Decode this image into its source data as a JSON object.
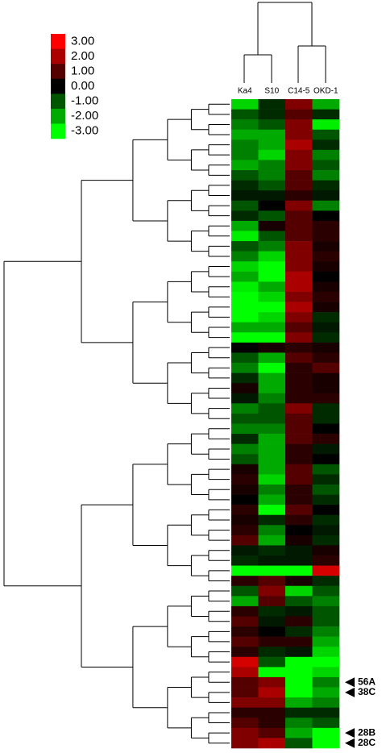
{
  "chart_data": {
    "type": "heatmap",
    "columns": [
      "Ka4",
      "S10",
      "C14-5",
      "OKD-1"
    ],
    "rows": [
      null,
      null,
      null,
      null,
      null,
      null,
      null,
      null,
      null,
      null,
      null,
      null,
      null,
      null,
      null,
      null,
      null,
      null,
      null,
      null,
      null,
      null,
      null,
      null,
      null,
      null,
      null,
      null,
      null,
      null,
      null,
      null,
      null,
      null,
      null,
      null,
      null,
      null,
      null,
      null,
      null,
      null,
      null,
      null,
      null,
      null,
      null,
      null,
      null,
      null,
      null,
      null,
      null,
      null,
      null,
      null,
      null,
      "56A",
      "38C",
      null,
      null,
      null,
      "28B",
      "28C"
    ],
    "values": [
      [
        -2.5,
        -0.5,
        1.5,
        -2
      ],
      [
        -1,
        -0.5,
        1,
        -0.5
      ],
      [
        -1.5,
        -1,
        1.5,
        -2.8
      ],
      [
        -2,
        -2,
        1.5,
        -1
      ],
      [
        -1.5,
        -2,
        2,
        -0.5
      ],
      [
        -1.5,
        -2.5,
        1.5,
        -1.5
      ],
      [
        -2,
        -1.5,
        1.5,
        -1
      ],
      [
        -1,
        -1.5,
        1,
        -1.5
      ],
      [
        -0.5,
        -1,
        1,
        -0.5
      ],
      [
        -0.3,
        -0.3,
        0.5,
        -0.3
      ],
      [
        -1,
        0,
        1.5,
        -1.5
      ],
      [
        -0.5,
        -1,
        1,
        0
      ],
      [
        -2,
        0.3,
        1,
        0.5
      ],
      [
        -2.8,
        -1,
        1,
        0.5
      ],
      [
        -1,
        -1.5,
        1.5,
        0.3
      ],
      [
        -1.5,
        -2.5,
        1.5,
        0.5
      ],
      [
        -2.5,
        -3,
        1.5,
        0.3
      ],
      [
        -2,
        -3,
        2,
        0
      ],
      [
        -2.8,
        -2,
        2,
        0.3
      ],
      [
        -3,
        -2.5,
        1.5,
        0.5
      ],
      [
        -3,
        -3,
        2,
        0.3
      ],
      [
        -3,
        -2.5,
        1.5,
        -0.5
      ],
      [
        -2,
        -2,
        1,
        -0.3
      ],
      [
        -3,
        -3,
        1.5,
        -0.5
      ],
      [
        0,
        0.3,
        0.5,
        0.3
      ],
      [
        -1,
        -2,
        1,
        0.5
      ],
      [
        -1.5,
        -3,
        0.5,
        1
      ],
      [
        -0.5,
        -2,
        0.5,
        0.3
      ],
      [
        0.3,
        -2,
        0.5,
        0.3
      ],
      [
        -0.3,
        -1.5,
        0.5,
        0.5
      ],
      [
        -1.5,
        -1,
        1.5,
        -0.5
      ],
      [
        -1,
        -1,
        1,
        -0.5
      ],
      [
        -1.5,
        -1.5,
        1,
        0
      ],
      [
        -0.5,
        -2,
        1,
        0.5
      ],
      [
        -1.5,
        -2,
        0.5,
        -0.3
      ],
      [
        -1,
        -2,
        0.5,
        0
      ],
      [
        0.3,
        -2,
        1,
        -1
      ],
      [
        0.5,
        -2.5,
        1,
        -0.5
      ],
      [
        0.3,
        -1.5,
        0.5,
        -1
      ],
      [
        0,
        -2,
        0.5,
        -0.5
      ],
      [
        0.5,
        -3,
        1,
        0
      ],
      [
        0.3,
        -0.5,
        0.5,
        -0.5
      ],
      [
        0.5,
        -1.5,
        0,
        -0.3
      ],
      [
        1,
        -2,
        0.3,
        -0.5
      ],
      [
        -0.3,
        -0.5,
        -0.3,
        0.3
      ],
      [
        -0.5,
        -0.3,
        -0.3,
        0.5
      ],
      [
        -3,
        -3,
        -3,
        2.5
      ],
      [
        0.5,
        1,
        0.3,
        -0.5
      ],
      [
        -1,
        1.5,
        -2.5,
        -1
      ],
      [
        -2,
        1,
        -1,
        -1.5
      ],
      [
        0.5,
        -0.5,
        -0.3,
        -1
      ],
      [
        1,
        -0.3,
        0.5,
        -1
      ],
      [
        0.5,
        0,
        -0.5,
        -1.5
      ],
      [
        1,
        0.5,
        0.5,
        -2
      ],
      [
        0.5,
        -0.5,
        -0.3,
        -2.5
      ],
      [
        2.5,
        -1,
        -3,
        -3
      ],
      [
        2,
        -3,
        -3,
        -2.5
      ],
      [
        1,
        1.5,
        -3,
        -1.5
      ],
      [
        1,
        2,
        -3,
        -2
      ],
      [
        1.5,
        1.5,
        -2,
        -1.5
      ],
      [
        0.5,
        0.5,
        -0.5,
        -0.5
      ],
      [
        1,
        0.5,
        -1.5,
        -1
      ],
      [
        1.5,
        1,
        -2,
        -3
      ],
      [
        1.5,
        2,
        -1,
        -3
      ]
    ],
    "zlim": [
      -3,
      3
    ],
    "colors": {
      "high": "#ff0000",
      "mid": "#000000",
      "low": "#00ff00"
    },
    "legend_ticks": [
      {
        "value": 3,
        "label": "3.00"
      },
      {
        "value": 2,
        "label": "2.00"
      },
      {
        "value": 1,
        "label": "1.00"
      },
      {
        "value": 0,
        "label": "0.00"
      },
      {
        "value": -1,
        "label": "-1.00"
      },
      {
        "value": -2,
        "label": "-2.00"
      },
      {
        "value": -3,
        "label": "-3.00"
      }
    ]
  }
}
